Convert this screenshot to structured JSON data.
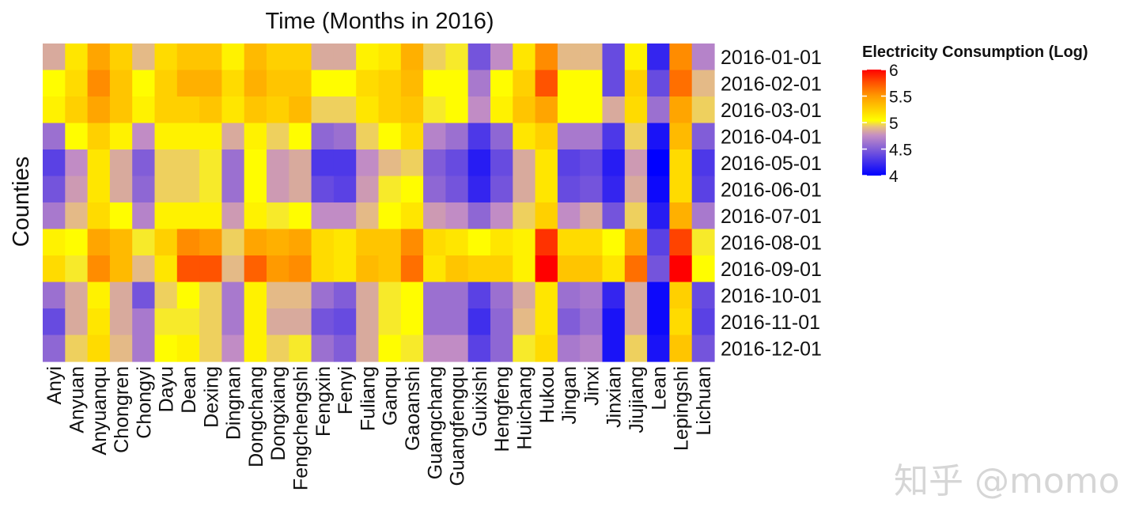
{
  "watermark": "知乎 @momo",
  "chart_data": {
    "type": "heatmap",
    "title": "Time (Months in 2016)",
    "ylabel": "Counties",
    "xlabel": "",
    "legend": {
      "title": "Electricity Consumption (Log)",
      "ticks": [
        4,
        4.5,
        5,
        5.5,
        6
      ],
      "range": [
        4,
        6
      ],
      "placement": "top-right"
    },
    "colorscale": [
      [
        0,
        "#0000ff"
      ],
      [
        0.38,
        "#c48ec4"
      ],
      [
        0.46,
        "#e8c07e"
      ],
      [
        0.52,
        "#ffff00"
      ],
      [
        0.62,
        "#ffd200"
      ],
      [
        0.75,
        "#ff9a00"
      ],
      [
        0.88,
        "#ff5000"
      ],
      [
        1,
        "#ff0000"
      ]
    ],
    "x": [
      "Anyi",
      "Anyuan",
      "Anyuanqu",
      "Chongren",
      "Chongyi",
      "Dayu",
      "Dean",
      "Dexing",
      "Dingnan",
      "Dongchang",
      "Dongxiang",
      "Fengchengshi",
      "Fengxin",
      "Fenyi",
      "Fuliang",
      "Ganqu",
      "Gaoanshi",
      "Guangchang",
      "Guangfengqu",
      "Guixishi",
      "Hengfeng",
      "Huichang",
      "Hukou",
      "Jingan",
      "Jinxi",
      "Jinxian",
      "Jiujiang",
      "Lean",
      "Lepingshi",
      "Lichuan"
    ],
    "y": [
      "2016-01-01",
      "2016-02-01",
      "2016-03-01",
      "2016-04-01",
      "2016-05-01",
      "2016-06-01",
      "2016-07-01",
      "2016-08-01",
      "2016-09-01",
      "2016-10-01",
      "2016-11-01",
      "2016-12-01"
    ],
    "z": [
      [
        4.85,
        5.15,
        5.45,
        5.25,
        4.9,
        5.2,
        5.3,
        5.3,
        5.1,
        5.35,
        5.25,
        5.25,
        4.85,
        4.85,
        5.1,
        5.15,
        5.4,
        4.95,
        5.0,
        4.45,
        4.75,
        5.15,
        5.55,
        4.9,
        4.9,
        4.4,
        5.1,
        4.2,
        5.55,
        4.7
      ],
      [
        5.05,
        5.2,
        5.55,
        5.3,
        5.05,
        5.25,
        5.4,
        5.4,
        5.2,
        5.4,
        5.3,
        5.3,
        5.05,
        5.05,
        5.2,
        5.25,
        5.35,
        5.05,
        5.05,
        4.65,
        5.05,
        5.25,
        5.75,
        5.05,
        5.05,
        4.4,
        5.25,
        4.4,
        5.65,
        4.9
      ],
      [
        5.1,
        5.25,
        5.45,
        5.3,
        5.1,
        5.25,
        5.25,
        5.3,
        5.15,
        5.3,
        5.25,
        5.35,
        4.95,
        4.95,
        5.15,
        5.25,
        5.3,
        5.0,
        5.05,
        4.75,
        5.1,
        5.3,
        5.45,
        5.05,
        5.05,
        4.85,
        5.2,
        4.6,
        5.45,
        4.95
      ],
      [
        4.6,
        5.05,
        5.25,
        5.1,
        4.75,
        5.1,
        5.1,
        5.1,
        4.85,
        5.1,
        4.95,
        5.05,
        4.55,
        4.6,
        4.95,
        5.05,
        5.2,
        4.7,
        4.6,
        4.3,
        4.55,
        5.15,
        5.25,
        4.65,
        4.65,
        4.3,
        4.95,
        4.1,
        5.35,
        4.5
      ],
      [
        4.35,
        4.75,
        5.15,
        4.85,
        4.5,
        4.95,
        4.95,
        5.0,
        4.6,
        5.05,
        4.8,
        4.85,
        4.3,
        4.3,
        4.75,
        4.9,
        4.95,
        4.5,
        4.4,
        4.15,
        4.4,
        4.85,
        5.15,
        4.35,
        4.4,
        4.15,
        4.8,
        4.0,
        5.2,
        4.3
      ],
      [
        4.45,
        4.8,
        5.15,
        4.85,
        4.55,
        4.95,
        4.95,
        5.0,
        4.6,
        5.05,
        4.8,
        4.85,
        4.4,
        4.35,
        4.8,
        5.0,
        5.05,
        4.55,
        4.45,
        4.2,
        4.45,
        4.85,
        5.15,
        4.4,
        4.45,
        4.2,
        4.85,
        4.05,
        5.2,
        4.35
      ],
      [
        4.65,
        4.9,
        5.2,
        5.05,
        4.7,
        5.1,
        5.1,
        5.1,
        4.8,
        5.1,
        5.0,
        5.05,
        4.75,
        4.75,
        4.9,
        5.05,
        5.15,
        4.8,
        4.75,
        4.55,
        4.75,
        4.95,
        5.25,
        4.75,
        4.85,
        4.45,
        4.95,
        4.15,
        5.4,
        4.65
      ],
      [
        5.1,
        5.05,
        5.45,
        5.35,
        5.0,
        5.25,
        5.55,
        5.5,
        4.95,
        5.45,
        5.4,
        5.45,
        5.2,
        5.15,
        5.3,
        5.3,
        5.55,
        5.2,
        5.15,
        5.05,
        5.15,
        5.1,
        5.85,
        5.2,
        5.2,
        5.05,
        5.45,
        4.35,
        5.8,
        5.0
      ],
      [
        5.2,
        5.0,
        5.55,
        5.35,
        4.9,
        5.15,
        5.75,
        5.75,
        4.9,
        5.7,
        5.5,
        5.55,
        5.2,
        5.15,
        5.35,
        5.3,
        5.65,
        5.15,
        5.3,
        5.25,
        5.25,
        5.1,
        6.05,
        5.3,
        5.3,
        5.15,
        5.65,
        4.45,
        6.0,
        5.05
      ],
      [
        4.6,
        4.85,
        5.1,
        4.85,
        4.45,
        4.95,
        5.05,
        4.95,
        4.65,
        5.1,
        4.9,
        4.9,
        4.6,
        4.5,
        4.85,
        5.0,
        5.05,
        4.6,
        4.6,
        4.35,
        4.6,
        4.85,
        5.15,
        4.6,
        4.65,
        4.2,
        4.85,
        4.05,
        5.25,
        4.4
      ],
      [
        4.4,
        4.85,
        5.15,
        4.85,
        4.65,
        5.0,
        5.0,
        4.95,
        4.65,
        5.1,
        4.85,
        4.85,
        4.45,
        4.4,
        4.85,
        5.0,
        5.05,
        4.6,
        4.6,
        4.25,
        4.55,
        4.9,
        5.15,
        4.5,
        4.6,
        4.1,
        4.85,
        4.05,
        5.2,
        4.35
      ],
      [
        4.55,
        4.95,
        5.2,
        4.9,
        4.65,
        5.05,
        5.1,
        4.95,
        4.75,
        5.1,
        4.95,
        5.0,
        4.6,
        4.5,
        4.85,
        5.05,
        5.0,
        4.75,
        4.75,
        4.35,
        4.55,
        5.0,
        5.2,
        4.65,
        4.7,
        4.1,
        4.95,
        4.1,
        5.3,
        4.45
      ]
    ]
  }
}
